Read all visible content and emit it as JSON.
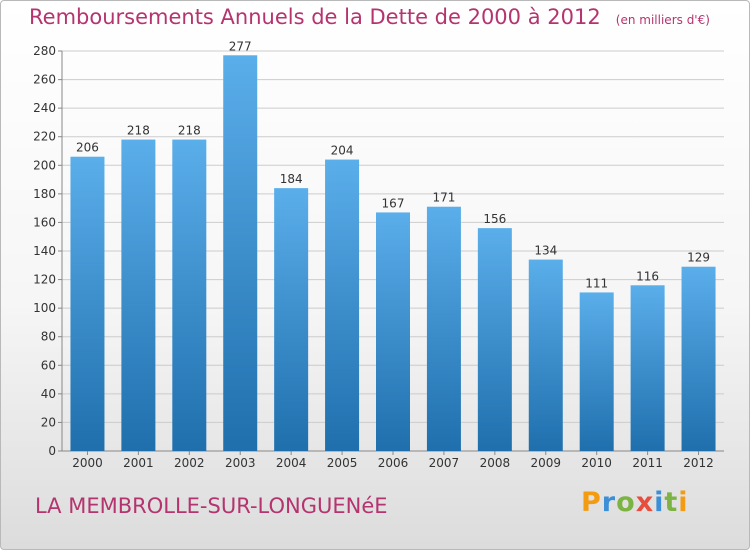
{
  "header": {
    "title": "Remboursements Annuels de la Dette de 2000 à 2012",
    "unit": "(en milliers d'€)"
  },
  "footer": {
    "commune": "LA MEMBROLLE-SUR-LONGUENéE",
    "brand": "Proxiti"
  },
  "colors": {
    "title": "#b5346f",
    "bar_top": "#5aaeea",
    "bar_bottom": "#1f6fad",
    "grid": "#cccccc",
    "brand_letters": [
      "#f39c12",
      "#3a8fd8",
      "#7cb342",
      "#e74c3c",
      "#3a8fd8",
      "#7cb342",
      "#f39c12"
    ]
  },
  "chart_data": {
    "type": "bar",
    "categories": [
      "2000",
      "2001",
      "2002",
      "2003",
      "2004",
      "2005",
      "2006",
      "2007",
      "2008",
      "2009",
      "2010",
      "2011",
      "2012"
    ],
    "values": [
      206,
      218,
      218,
      277,
      184,
      204,
      167,
      171,
      156,
      134,
      111,
      116,
      129
    ],
    "data_labels": [
      "206",
      "218",
      "218",
      "277",
      "184",
      "204",
      "167",
      "171",
      "156",
      "134",
      "111",
      "116",
      "129"
    ],
    "ylim": [
      0,
      280
    ],
    "yticks": [
      0,
      20,
      40,
      60,
      80,
      100,
      120,
      140,
      160,
      180,
      200,
      220,
      240,
      260,
      280
    ],
    "grid": true,
    "legend": false
  }
}
